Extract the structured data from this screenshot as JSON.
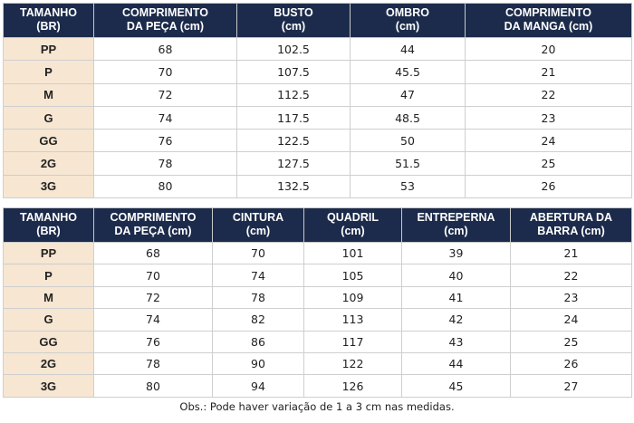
{
  "tables": [
    {
      "header": [
        [
          "TAMANHO",
          "(BR)"
        ],
        [
          "COMPRIMENTO",
          "DA PEÇA (cm)"
        ],
        [
          "BUSTO",
          "(cm)"
        ],
        [
          "OMBRO",
          "(cm)"
        ],
        [
          "COMPRIMENTO",
          "DA MANGA (cm)"
        ]
      ],
      "rows": [
        [
          "PP",
          68,
          102.5,
          44,
          20
        ],
        [
          "P",
          70,
          107.5,
          45.5,
          21
        ],
        [
          "M",
          72,
          112.5,
          47,
          22
        ],
        [
          "G",
          74,
          117.5,
          48.5,
          23
        ],
        [
          "GG",
          76,
          122.5,
          50,
          24
        ],
        [
          "2G",
          78,
          127.5,
          51.5,
          25
        ],
        [
          "3G",
          80,
          132.5,
          53,
          26
        ]
      ]
    },
    {
      "header": [
        [
          "TAMANHO",
          "(BR)"
        ],
        [
          "COMPRIMENTO",
          "DA PEÇA (cm)"
        ],
        [
          "CINTURA",
          "(cm)"
        ],
        [
          "QUADRIL",
          "(cm)"
        ],
        [
          "ENTREPERNA",
          "(cm)"
        ],
        [
          "ABERTURA DA",
          "BARRA (cm)"
        ]
      ],
      "rows": [
        [
          "PP",
          68,
          70,
          101,
          39,
          21
        ],
        [
          "P",
          70,
          74,
          105,
          40,
          22
        ],
        [
          "M",
          72,
          78,
          109,
          41,
          23
        ],
        [
          "G",
          74,
          82,
          113,
          42,
          24
        ],
        [
          "GG",
          76,
          86,
          117,
          43,
          25
        ],
        [
          "2G",
          78,
          90,
          122,
          44,
          26
        ],
        [
          "3G",
          80,
          94,
          126,
          45,
          27
        ]
      ]
    }
  ],
  "note": "Obs.: Pode haver variação de 1 a 3 cm nas medidas."
}
